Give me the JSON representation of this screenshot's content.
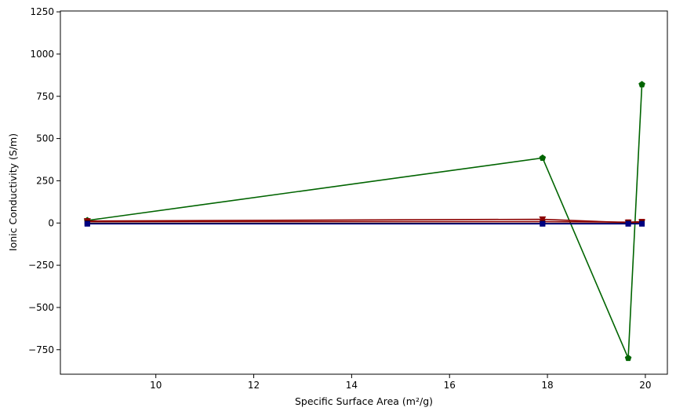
{
  "chart_data": {
    "type": "line",
    "title": "",
    "xlabel": "Specific Surface Area (m²/g)",
    "ylabel": "Ionic Conductivity (S/m)",
    "xlim": [
      8.05,
      20.45
    ],
    "ylim": [
      -895,
      1255
    ],
    "xticks": [
      10,
      12,
      14,
      16,
      18,
      20
    ],
    "yticks": [
      -750,
      -500,
      -250,
      0,
      250,
      500,
      750,
      1000,
      1250
    ],
    "grid": false,
    "x": [
      8.6,
      17.9,
      19.65,
      19.93
    ],
    "series": [
      {
        "color": "#006400",
        "marker": "pentagon",
        "values": [
          15,
          385,
          -800,
          820
        ]
      },
      {
        "color": "#8b0000",
        "marker": "triangle-down",
        "values": [
          12,
          22,
          2,
          5
        ]
      },
      {
        "color": "#8b0000",
        "marker": "square",
        "values": [
          8,
          8,
          5,
          8
        ]
      },
      {
        "color": "#000000",
        "marker": "square",
        "values": [
          -2,
          -3,
          -3,
          -3
        ]
      },
      {
        "color": "#000080",
        "marker": "square",
        "values": [
          -5,
          -5,
          -5,
          -5
        ]
      }
    ]
  }
}
